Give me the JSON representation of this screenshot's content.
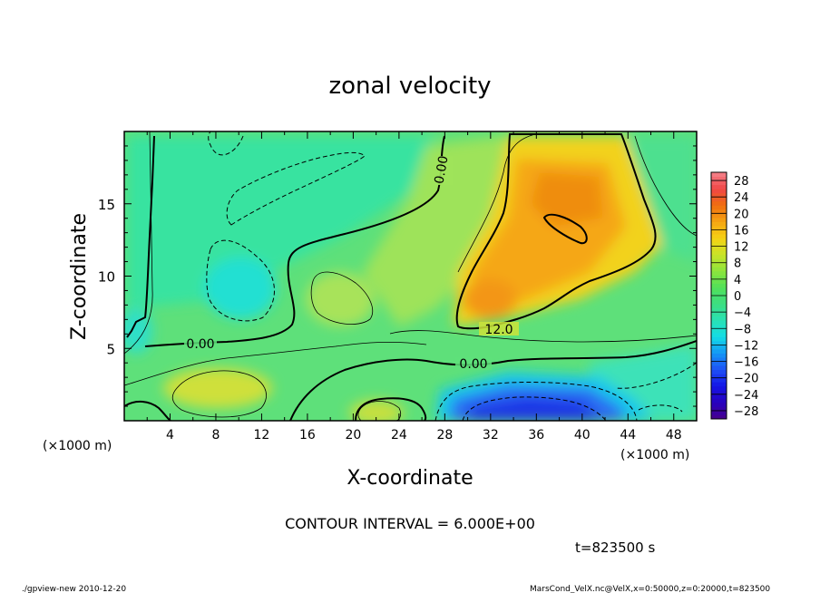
{
  "chart_data": {
    "type": "heatmap",
    "title": "zonal velocity",
    "xlabel": "X-coordinate",
    "ylabel": "Z-coordinate",
    "x_unit": "(×1000 m)",
    "y_unit": "(×1000 m)",
    "xlim": [
      0,
      50
    ],
    "ylim": [
      0,
      20
    ],
    "x_ticks": [
      "4",
      "8",
      "12",
      "16",
      "20",
      "24",
      "28",
      "32",
      "36",
      "40",
      "44",
      "48"
    ],
    "y_ticks": [
      "5",
      "10",
      "15"
    ],
    "colorbar_ticks": [
      "28",
      "24",
      "20",
      "16",
      "12",
      "8",
      "4",
      "0",
      "−4",
      "−8",
      "−12",
      "−16",
      "−20",
      "−24",
      "−28"
    ],
    "colorbar_range": [
      -30,
      30
    ],
    "contour_labels": [
      "0.00",
      "0.00",
      "12.0",
      "0.00"
    ],
    "contour_interval_text": "CONTOUR INTERVAL = 6.000E+00",
    "time_text": "t=823500 s",
    "footer_left": "./gpview-new  2010-12-20",
    "footer_right": "MarsCond_VelX.nc@VelX,x=0:50000,z=0:20000,t=823500"
  }
}
